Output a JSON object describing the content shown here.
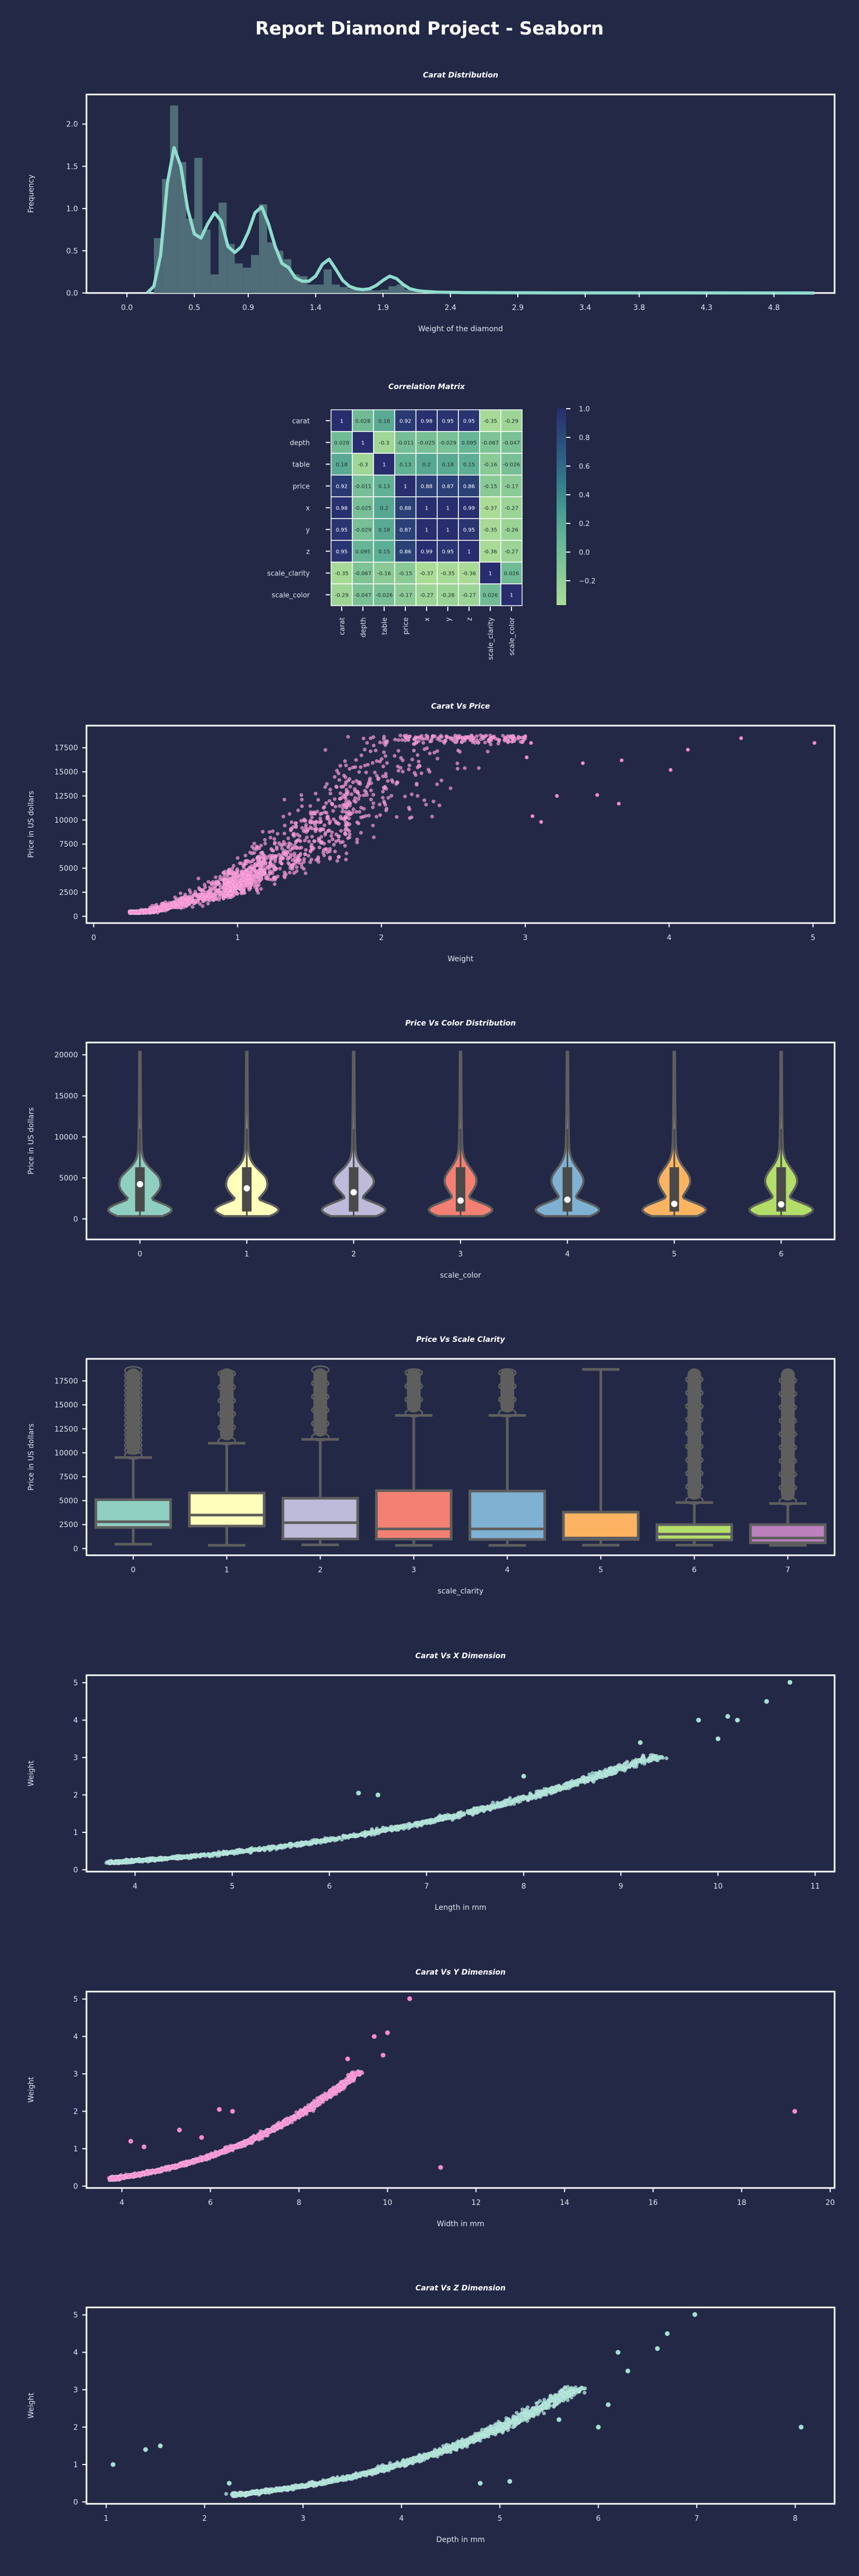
{
  "report_title": "Report Diamond Project - Seaborn",
  "colors": {
    "background": "#222846",
    "axis_line": "#ffffff",
    "mint": "#a6dfd3",
    "pink": "#f58bd0",
    "hist_bar": "#4f6d78",
    "kde_line": "#8fdccd",
    "box_line": "#5e5e5e",
    "violin_palette": [
      "#8ecfc1",
      "#ffffbb",
      "#bebada",
      "#f38072",
      "#7fb1d3",
      "#fdb462",
      "#b3de69"
    ],
    "box_palette": [
      "#8ecfc1",
      "#ffffbb",
      "#bebada",
      "#f38072",
      "#7fb1d3",
      "#fdb462",
      "#b3de69",
      "#bc80bd"
    ]
  },
  "chart_data": [
    {
      "id": "carat_distribution",
      "type": "bar",
      "title": "Carat Distribution",
      "xlabel": "Weight of the diamond",
      "ylabel": "Frequency",
      "xlim": [
        -0.3,
        5.25
      ],
      "ylim": [
        0,
        2.35
      ],
      "xticks": [
        "0.0",
        "0.5",
        "0.9",
        "1.4",
        "1.9",
        "2.4",
        "2.9",
        "3.4",
        "3.8",
        "4.3",
        "4.8"
      ],
      "yticks": [
        "0.0",
        "0.5",
        "1.0",
        "1.5",
        "2.0"
      ],
      "bins": {
        "edges": [
          0.2,
          0.26,
          0.32,
          0.38,
          0.44,
          0.5,
          0.56,
          0.62,
          0.68,
          0.74,
          0.8,
          0.86,
          0.92,
          0.98,
          1.04,
          1.1,
          1.16,
          1.22,
          1.28,
          1.34,
          1.4,
          1.46,
          1.52,
          1.58,
          1.64,
          1.7,
          1.76,
          1.82,
          1.88,
          1.94,
          2.0,
          2.06,
          2.12,
          2.18,
          2.24,
          2.3
        ],
        "frequency": [
          0.65,
          1.35,
          2.22,
          1.55,
          0.88,
          1.6,
          0.75,
          0.22,
          1.07,
          0.58,
          0.35,
          0.3,
          0.45,
          1.05,
          0.6,
          0.5,
          0.4,
          0.22,
          0.2,
          0.1,
          0.1,
          0.28,
          0.1,
          0.07,
          0.05,
          0.04,
          0.04,
          0.03,
          0.04,
          0.08,
          0.1,
          0.04,
          0.03,
          0.02,
          0.02
        ]
      },
      "kde": {
        "x": [
          0.15,
          0.2,
          0.25,
          0.3,
          0.35,
          0.4,
          0.45,
          0.5,
          0.55,
          0.6,
          0.65,
          0.7,
          0.75,
          0.8,
          0.85,
          0.9,
          0.95,
          1.0,
          1.05,
          1.1,
          1.15,
          1.2,
          1.25,
          1.3,
          1.35,
          1.4,
          1.45,
          1.5,
          1.55,
          1.6,
          1.65,
          1.7,
          1.75,
          1.8,
          1.85,
          1.9,
          1.95,
          2.0,
          2.05,
          2.1,
          2.15,
          2.2,
          2.3,
          2.5,
          2.8,
          3.2,
          4.0,
          5.1
        ],
        "y": [
          0.0,
          0.08,
          0.45,
          1.3,
          1.72,
          1.5,
          1.0,
          0.7,
          0.65,
          0.82,
          0.95,
          0.85,
          0.55,
          0.48,
          0.55,
          0.72,
          0.95,
          1.02,
          0.82,
          0.55,
          0.35,
          0.3,
          0.18,
          0.14,
          0.14,
          0.2,
          0.34,
          0.4,
          0.28,
          0.15,
          0.08,
          0.05,
          0.04,
          0.05,
          0.09,
          0.15,
          0.2,
          0.17,
          0.1,
          0.05,
          0.03,
          0.02,
          0.01,
          0.005,
          0.003,
          0.002,
          0.001,
          0.0
        ]
      }
    },
    {
      "id": "correlation_matrix",
      "type": "heatmap",
      "title": "Correlation Matrix",
      "labels": [
        "carat",
        "depth",
        "table",
        "price",
        "x",
        "y",
        "z",
        "scale_clarity",
        "scale_color"
      ],
      "cells": [
        [
          "1",
          "0.028",
          "0.18",
          "0.92",
          "0.98",
          "0.95",
          "0.95",
          "-0.35",
          "-0.29"
        ],
        [
          "0.028",
          "1",
          "-0.3",
          "-0.011",
          "-0.025",
          "-0.029",
          "0.095",
          "-0.067",
          "-0.047"
        ],
        [
          "0.18",
          "-0.3",
          "1",
          "0.13",
          "0.2",
          "0.18",
          "0.15",
          "-0.16",
          "-0.026"
        ],
        [
          "0.92",
          "-0.011",
          "0.13",
          "1",
          "0.88",
          "0.87",
          "0.86",
          "-0.15",
          "-0.17"
        ],
        [
          "0.98",
          "-0.025",
          "0.2",
          "0.88",
          "1",
          "1",
          "0.99",
          "-0.37",
          "-0.27"
        ],
        [
          "0.95",
          "-0.029",
          "0.18",
          "0.87",
          "1",
          "1",
          "0.95",
          "-0.35",
          "-0.26"
        ],
        [
          "0.95",
          "0.095",
          "0.15",
          "0.86",
          "0.99",
          "0.95",
          "1",
          "-0.36",
          "-0.27"
        ],
        [
          "-0.35",
          "-0.067",
          "-0.16",
          "-0.15",
          "-0.37",
          "-0.35",
          "-0.36",
          "1",
          "0.026"
        ],
        [
          "-0.29",
          "-0.047",
          "-0.026",
          "-0.17",
          "-0.27",
          "-0.26",
          "-0.27",
          "0.026",
          "1"
        ]
      ],
      "colorbar_ticks": [
        "1.0",
        "0.8",
        "0.6",
        "0.4",
        "0.2",
        "0.0",
        "−0.2"
      ],
      "vmin": -0.37,
      "vmax": 1.0
    },
    {
      "id": "carat_vs_price",
      "type": "scatter",
      "title": "Carat Vs Price",
      "xlabel": "Weight",
      "ylabel": "Price in US dollars",
      "xlim": [
        -0.05,
        5.15
      ],
      "ylim": [
        -700,
        19800
      ],
      "xticks": [
        "0",
        "1",
        "2",
        "3",
        "4",
        "5"
      ],
      "yticks": [
        "0",
        "2500",
        "5000",
        "7500",
        "10000",
        "12500",
        "15000",
        "17500"
      ],
      "color": "#f58bd0",
      "outliers": [
        [
          3.0,
          18700
        ],
        [
          3.01,
          16500
        ],
        [
          3.04,
          18000
        ],
        [
          3.05,
          10400
        ],
        [
          3.11,
          9800
        ],
        [
          3.22,
          12500
        ],
        [
          3.4,
          15900
        ],
        [
          3.5,
          12600
        ],
        [
          3.65,
          11700
        ],
        [
          3.67,
          16200
        ],
        [
          4.01,
          15200
        ],
        [
          4.13,
          17300
        ],
        [
          4.5,
          18500
        ],
        [
          5.01,
          18000
        ]
      ]
    },
    {
      "id": "price_vs_color",
      "type": "violin",
      "title": "Price Vs Color Distribution",
      "xlabel": "scale_color",
      "ylabel": "Price in US dollars",
      "ylim": [
        -2500,
        21500
      ],
      "categories": [
        "0",
        "1",
        "2",
        "3",
        "4",
        "5",
        "6"
      ],
      "yticks": [
        "0",
        "5000",
        "10000",
        "15000",
        "20000"
      ],
      "medians": [
        4234,
        3730,
        3246,
        2242,
        2344,
        1838,
        1778
      ]
    },
    {
      "id": "price_vs_clarity",
      "type": "box",
      "title": "Price Vs Scale Clarity",
      "xlabel": "scale_clarity",
      "ylabel": "Price in US dollars",
      "ylim": [
        -700,
        19800
      ],
      "categories": [
        "0",
        "1",
        "2",
        "3",
        "4",
        "5",
        "6",
        "7"
      ],
      "yticks": [
        "0",
        "2500",
        "5000",
        "7500",
        "10000",
        "12500",
        "15000",
        "17500"
      ],
      "boxes": [
        {
          "q1": 2200,
          "median": 2800,
          "q3": 5100,
          "lo": 460,
          "hi": 9500
        },
        {
          "q1": 2350,
          "median": 3500,
          "q3": 5800,
          "lo": 340,
          "hi": 11000
        },
        {
          "q1": 1000,
          "median": 2700,
          "q3": 5250,
          "lo": 390,
          "hi": 11400
        },
        {
          "q1": 980,
          "median": 2050,
          "q3": 6050,
          "lo": 330,
          "hi": 13900
        },
        {
          "q1": 950,
          "median": 2050,
          "q3": 6000,
          "lo": 330,
          "hi": 13900
        },
        {
          "q1": 950,
          "median": 1100,
          "q3": 3800,
          "lo": 350,
          "hi": 18700
        },
        {
          "q1": 900,
          "median": 1500,
          "q3": 2500,
          "lo": 360,
          "hi": 4800
        },
        {
          "q1": 600,
          "median": 1100,
          "q3": 2500,
          "lo": 340,
          "hi": 4700
        }
      ]
    },
    {
      "id": "carat_vs_x",
      "type": "scatter",
      "title": "Carat Vs X Dimension",
      "xlabel": "Length in mm",
      "ylabel": "Weight",
      "xlim": [
        3.5,
        11.2
      ],
      "ylim": [
        -0.05,
        5.2
      ],
      "xticks": [
        "4",
        "5",
        "6",
        "7",
        "8",
        "9",
        "10",
        "11"
      ],
      "yticks": [
        "0",
        "1",
        "2",
        "3",
        "4",
        "5"
      ],
      "color": "#a6dfd3",
      "outliers": [
        [
          6.3,
          2.05
        ],
        [
          6.5,
          2.0
        ],
        [
          8.0,
          2.5
        ],
        [
          9.2,
          3.4
        ],
        [
          9.4,
          3.0
        ],
        [
          9.8,
          4.0
        ],
        [
          10.0,
          3.5
        ],
        [
          10.1,
          4.1
        ],
        [
          10.2,
          4.0
        ],
        [
          10.5,
          4.5
        ],
        [
          10.74,
          5.01
        ]
      ]
    },
    {
      "id": "carat_vs_y",
      "type": "scatter",
      "title": "Carat Vs Y Dimension",
      "xlabel": "Width in mm",
      "ylabel": "Weight",
      "xlim": [
        3.2,
        20.1
      ],
      "ylim": [
        -0.05,
        5.2
      ],
      "xticks": [
        "4",
        "6",
        "8",
        "10",
        "12",
        "14",
        "16",
        "18",
        "20"
      ],
      "yticks": [
        "0",
        "1",
        "2",
        "3",
        "4",
        "5"
      ],
      "color": "#f58bd0",
      "outliers": [
        [
          4.2,
          1.2
        ],
        [
          4.5,
          1.05
        ],
        [
          5.3,
          1.5
        ],
        [
          5.8,
          1.3
        ],
        [
          6.2,
          2.05
        ],
        [
          6.5,
          2.0
        ],
        [
          9.1,
          3.4
        ],
        [
          9.3,
          3.0
        ],
        [
          9.7,
          4.0
        ],
        [
          9.9,
          3.5
        ],
        [
          10.0,
          4.1
        ],
        [
          10.5,
          5.01
        ],
        [
          11.2,
          0.5
        ],
        [
          19.2,
          2.0
        ]
      ]
    },
    {
      "id": "carat_vs_z",
      "type": "scatter",
      "title": "Carat Vs Z Dimension",
      "xlabel": "Depth in mm",
      "ylabel": "Weight",
      "xlim": [
        0.8,
        8.4
      ],
      "ylim": [
        -0.05,
        5.2
      ],
      "xticks": [
        "1",
        "2",
        "3",
        "4",
        "5",
        "6",
        "7",
        "8"
      ],
      "yticks": [
        "0",
        "1",
        "2",
        "3",
        "4",
        "5"
      ],
      "color": "#a6dfd3",
      "outliers": [
        [
          1.07,
          1.0
        ],
        [
          1.4,
          1.4
        ],
        [
          1.55,
          1.5
        ],
        [
          2.25,
          0.5
        ],
        [
          4.8,
          0.5
        ],
        [
          5.1,
          0.55
        ],
        [
          5.2,
          2.3
        ],
        [
          5.6,
          2.2
        ],
        [
          6.0,
          2.0
        ],
        [
          6.1,
          2.6
        ],
        [
          6.2,
          4.0
        ],
        [
          6.3,
          3.5
        ],
        [
          6.6,
          4.1
        ],
        [
          6.7,
          4.5
        ],
        [
          6.98,
          5.01
        ],
        [
          8.06,
          2.0
        ]
      ]
    }
  ]
}
